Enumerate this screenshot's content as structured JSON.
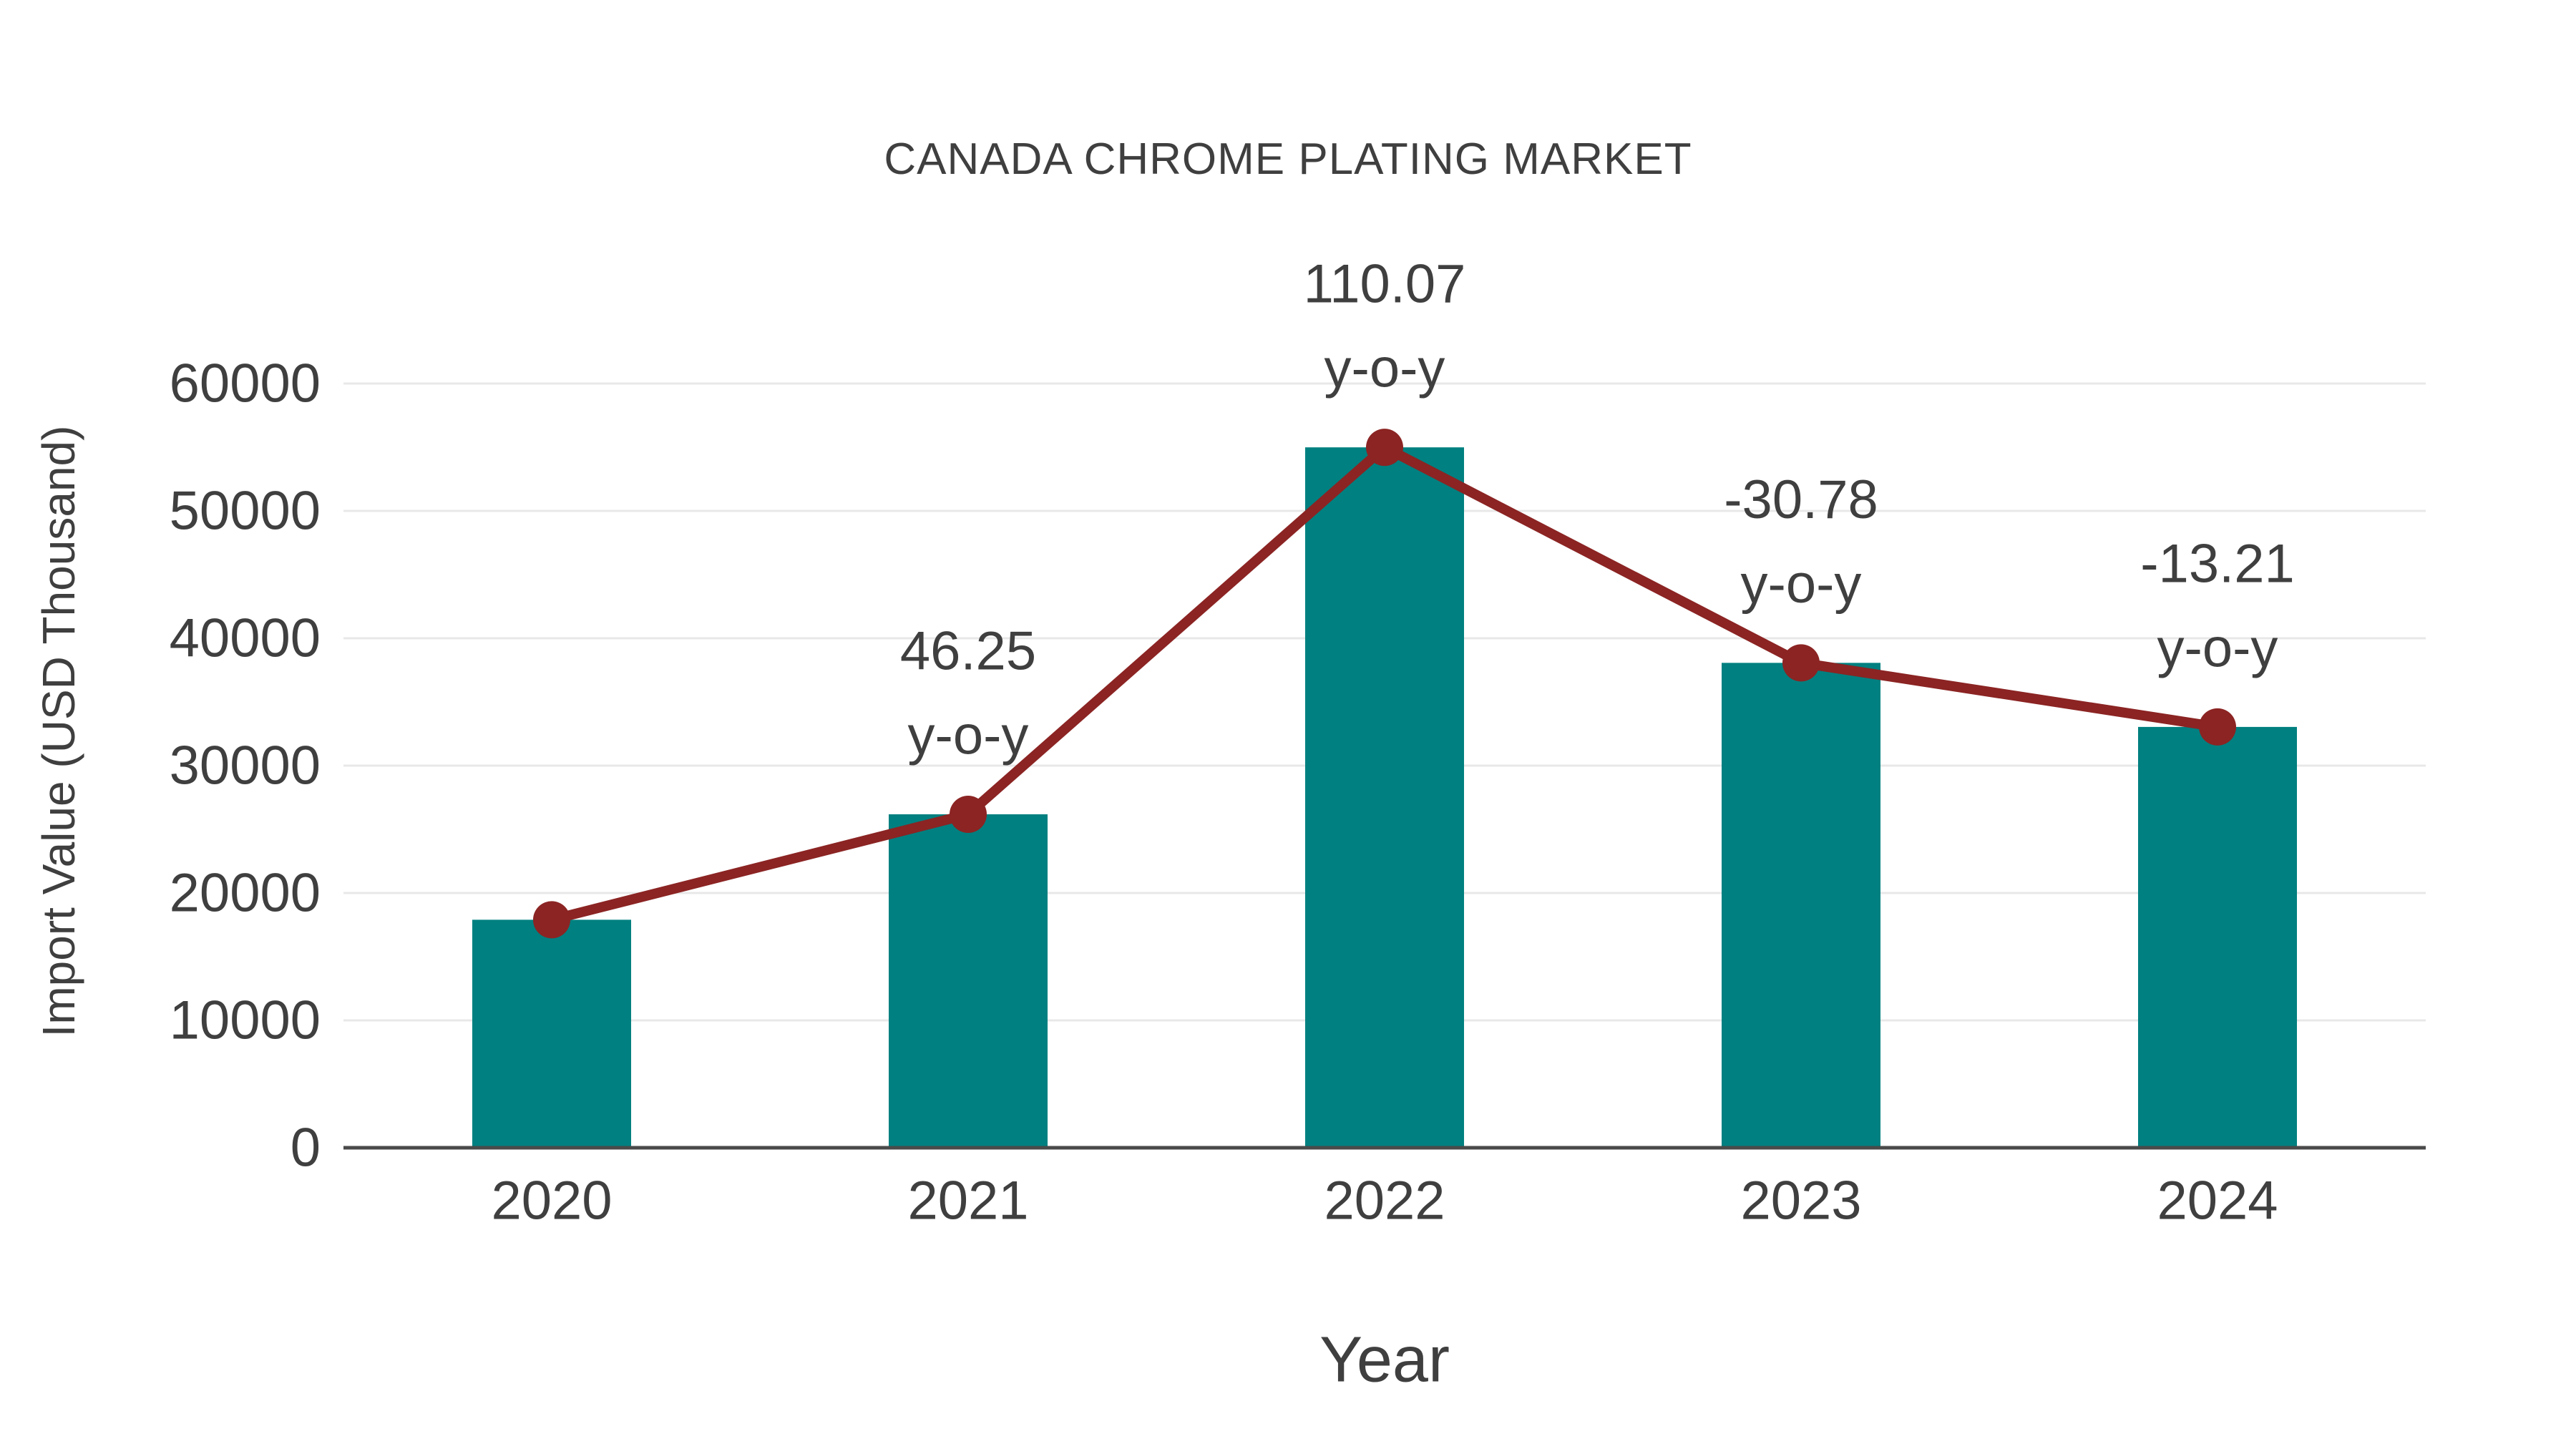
{
  "page": {
    "background": "#ffffff"
  },
  "chart_data": {
    "type": "bar",
    "title": "CANADA CHROME PLATING MARKET",
    "xlabel": "Year",
    "ylabel": "Import Value (USD Thousand)",
    "categories": [
      "2020",
      "2021",
      "2022",
      "2023",
      "2024"
    ],
    "series": [
      {
        "name": "Import Value bars",
        "type": "bar",
        "values": [
          17900,
          26180,
          54990,
          38070,
          33040
        ],
        "color": "#008080"
      },
      {
        "name": "Import Value trend line",
        "type": "line",
        "values": [
          17900,
          26180,
          54990,
          38070,
          33040
        ],
        "color": "#8b2423"
      }
    ],
    "annotations": [
      {
        "category": "2021",
        "yoy_percent": 46.25,
        "lines": [
          "46.25",
          "y-o-y"
        ]
      },
      {
        "category": "2022",
        "yoy_percent": 110.07,
        "lines": [
          "110.07",
          "y-o-y"
        ]
      },
      {
        "category": "2023",
        "yoy_percent": -30.78,
        "lines": [
          "-30.78",
          "y-o-y"
        ]
      },
      {
        "category": "2024",
        "yoy_percent": -13.21,
        "lines": [
          "-13.21",
          "y-o-y"
        ]
      }
    ],
    "yticks": [
      0,
      10000,
      20000,
      30000,
      40000,
      50000,
      60000
    ],
    "ylim": [
      0,
      60000
    ],
    "grid": "horizontal",
    "legend": "none",
    "colors": {
      "bar": "#008080",
      "line": "#8b2423",
      "text": "#3f3f3f",
      "grid": "#e8e8e8",
      "axis": "#4a4a4a"
    }
  }
}
